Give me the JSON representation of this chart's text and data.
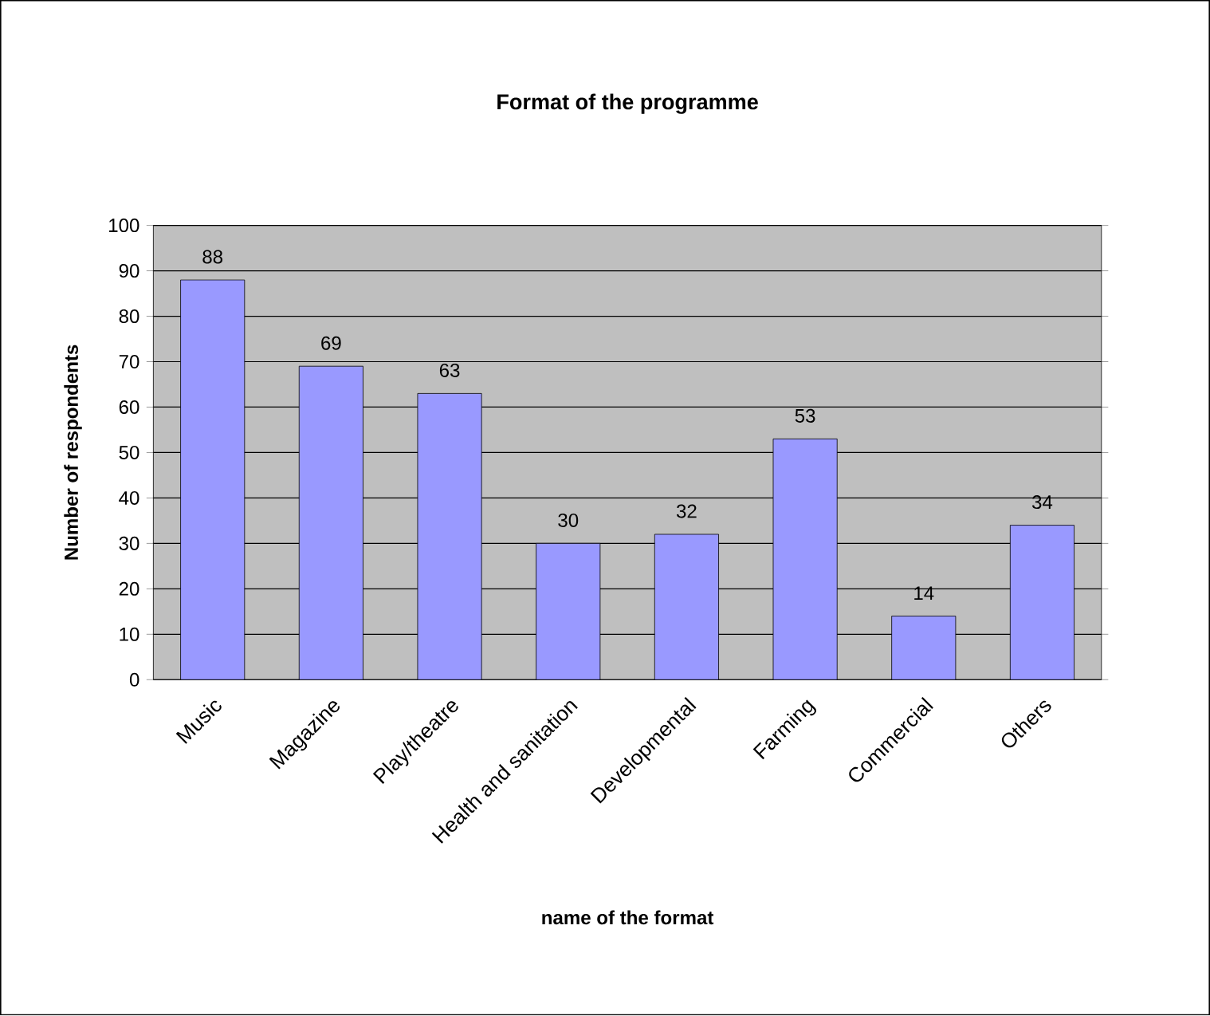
{
  "chart_data": {
    "type": "bar",
    "title": "Format of the programme",
    "xlabel": "name of the format",
    "ylabel": "Number of respondents",
    "categories": [
      "Music",
      "Magazine",
      "Play/theatre",
      "Health and sanitation",
      "Developmental",
      "Farming",
      "Commercial",
      "Others"
    ],
    "values": [
      88,
      69,
      63,
      30,
      32,
      53,
      14,
      34
    ],
    "color": "#9999ff",
    "ylim": [
      0,
      100
    ],
    "yticks": [
      0,
      10,
      20,
      30,
      40,
      50,
      60,
      70,
      80,
      90,
      100
    ],
    "grid": "y",
    "data_labels": true
  }
}
